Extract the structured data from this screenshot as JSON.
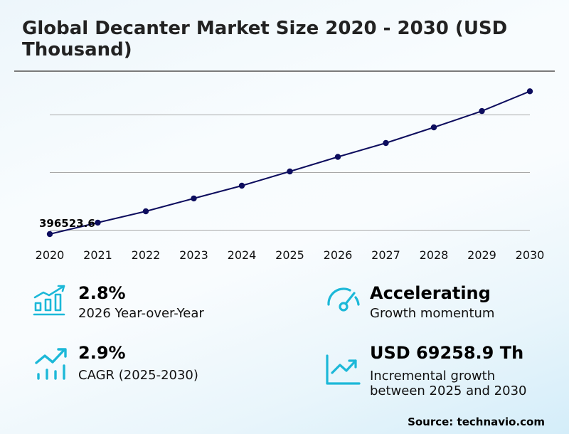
{
  "header": {
    "title": "Global Decanter Market Size 2020 - 2030 (USD Thousand)"
  },
  "chart_data": {
    "type": "line",
    "title": "Global Decanter Market Size 2020 - 2030 (USD Thousand)",
    "xlabel": "",
    "ylabel": "USD Thousand",
    "categories": [
      "2020",
      "2021",
      "2022",
      "2023",
      "2024",
      "2025",
      "2026",
      "2027",
      "2028",
      "2029",
      "2030"
    ],
    "series": [
      {
        "name": "Market Size",
        "color": "#0d0d5e",
        "values": [
          396523.6,
          406400,
          416200,
          427300,
          438300,
          450600,
          463200,
          475200,
          488700,
          502800,
          519860
        ]
      }
    ],
    "data_labels": [
      {
        "category": "2020",
        "text": "396523.6"
      }
    ],
    "ylim": [
      390000,
      525000
    ],
    "gridlines": [
      400000,
      450000,
      500000
    ],
    "grid": true,
    "legend": "none"
  },
  "stats": [
    {
      "icon": "bar-growth-icon",
      "value": "2.8%",
      "label": "2026 Year-over-Year"
    },
    {
      "icon": "trend-arrow-bars-icon",
      "value": "2.9%",
      "label": "CAGR (2025-2030)"
    },
    {
      "icon": "speedometer-icon",
      "value": "Accelerating",
      "label": "Growth momentum"
    },
    {
      "icon": "line-chart-up-icon",
      "value": "USD 69258.9 Th",
      "label_line1": "Incremental growth",
      "label_line2": "between 2025 and 2030"
    }
  ],
  "footer": {
    "source": "Source: technavio.com"
  },
  "colors": {
    "line": "#0d0d5e",
    "icon_accent": "#1cb8d8",
    "gridline": "#a8a8a8",
    "title": "#222222",
    "rule": "#7a7a7a"
  }
}
